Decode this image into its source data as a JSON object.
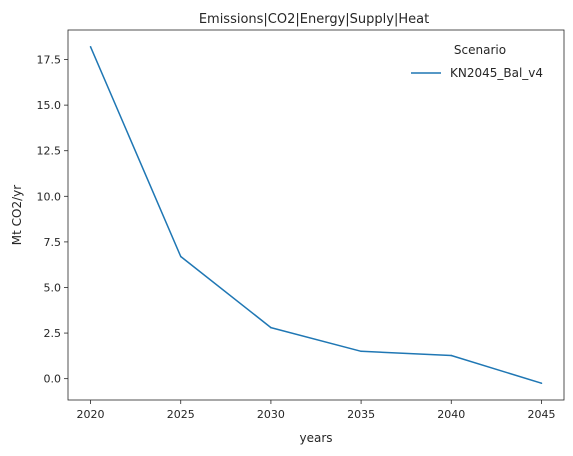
{
  "chart_data": {
    "type": "line",
    "title": "Emissions|CO2|Energy|Supply|Heat",
    "xlabel": "years",
    "ylabel": "Mt CO2/yr",
    "x": [
      2020,
      2025,
      2030,
      2035,
      2040,
      2045
    ],
    "series": [
      {
        "name": "KN2045_Bal_v4",
        "values": [
          18.2,
          6.7,
          2.8,
          1.5,
          1.27,
          -0.25
        ],
        "color": "#1f77b4"
      }
    ],
    "xticks": [
      "2020",
      "2025",
      "2030",
      "2035",
      "2040",
      "2045"
    ],
    "yticks": [
      "0.0",
      "2.5",
      "5.0",
      "7.5",
      "10.0",
      "12.5",
      "15.0",
      "17.5"
    ],
    "xlim": [
      2018.75,
      2046.25
    ],
    "ylim": [
      -1.17,
      19.12
    ],
    "grid": false,
    "legend": {
      "title": "Scenario",
      "placement": "top-right"
    }
  }
}
